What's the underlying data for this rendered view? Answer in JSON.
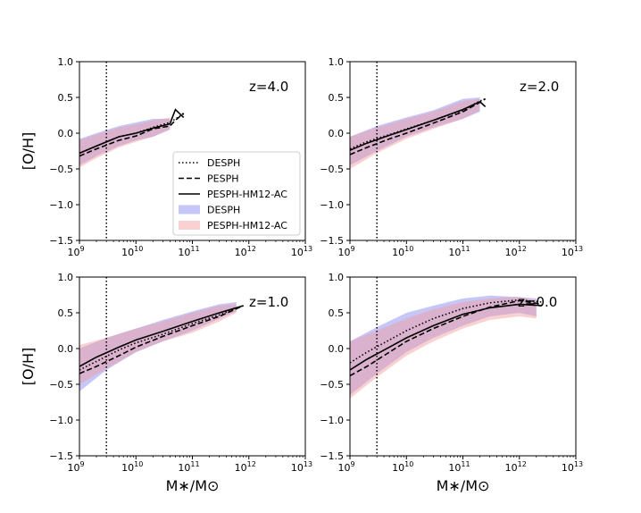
{
  "chart_data": [
    {
      "type": "line",
      "panel_label": "z=4.0",
      "xlabel": "",
      "ylabel": "[O/H]",
      "xscale": "log",
      "xlim": [
        1000000000.0,
        10000000000000.0
      ],
      "ylim": [
        -1.5,
        1.0
      ],
      "vline_x": 3000000000.0,
      "series": [
        {
          "name": "DESPH",
          "style": "dotted",
          "x": [
            1000000000.0,
            2000000000.0,
            5000000000.0,
            10000000000.0,
            20000000000.0,
            40000000000.0,
            50000000000.0,
            70000000000.0
          ],
          "y": [
            -0.28,
            -0.18,
            -0.05,
            0.0,
            0.08,
            0.15,
            0.2,
            0.27
          ]
        },
        {
          "name": "PESPH",
          "style": "dashed",
          "x": [
            1000000000.0,
            2000000000.0,
            5000000000.0,
            10000000000.0,
            20000000000.0,
            40000000000.0,
            50000000000.0,
            70000000000.0
          ],
          "y": [
            -0.32,
            -0.22,
            -0.1,
            -0.04,
            0.06,
            0.1,
            0.18,
            0.28
          ]
        },
        {
          "name": "PESPH-HM12-AC",
          "style": "solid",
          "x": [
            1000000000.0,
            2000000000.0,
            5000000000.0,
            10000000000.0,
            20000000000.0,
            40000000000.0,
            50000000000.0,
            70000000000.0
          ],
          "y": [
            -0.28,
            -0.18,
            -0.05,
            0.0,
            0.07,
            0.13,
            0.33,
            0.22
          ]
        },
        {
          "name": "DESPH",
          "style": "band",
          "color": "#8080ee",
          "x": [
            1000000000.0,
            2000000000.0,
            5000000000.0,
            10000000000.0,
            20000000000.0,
            40000000000.0
          ],
          "y_low": [
            -0.45,
            -0.32,
            -0.18,
            -0.1,
            -0.05,
            0.05
          ],
          "y_high": [
            -0.08,
            0.0,
            0.1,
            0.15,
            0.2,
            0.2
          ]
        },
        {
          "name": "PESPH-HM12-AC",
          "style": "band",
          "color": "#f19898",
          "x": [
            1000000000.0,
            2000000000.0,
            5000000000.0,
            10000000000.0,
            20000000000.0,
            40000000000.0
          ],
          "y_low": [
            -0.48,
            -0.35,
            -0.2,
            -0.12,
            -0.05,
            0.05
          ],
          "y_high": [
            -0.1,
            -0.02,
            0.08,
            0.12,
            0.18,
            0.22
          ]
        }
      ]
    },
    {
      "type": "line",
      "panel_label": "z=2.0",
      "xlabel": "",
      "ylabel": "",
      "xscale": "log",
      "xlim": [
        1000000000.0,
        10000000000000.0
      ],
      "ylim": [
        -1.5,
        1.0
      ],
      "vline_x": 3000000000.0,
      "series": [
        {
          "name": "DESPH",
          "style": "dotted",
          "x": [
            1000000000.0,
            2000000000.0,
            5000000000.0,
            10000000000.0,
            30000000000.0,
            100000000000.0,
            200000000000.0,
            250000000000.0
          ],
          "y": [
            -0.22,
            -0.12,
            -0.02,
            0.06,
            0.18,
            0.32,
            0.45,
            0.48
          ]
        },
        {
          "name": "PESPH",
          "style": "dashed",
          "x": [
            1000000000.0,
            2000000000.0,
            5000000000.0,
            10000000000.0,
            30000000000.0,
            100000000000.0,
            200000000000.0,
            250000000000.0
          ],
          "y": [
            -0.3,
            -0.2,
            -0.08,
            0.0,
            0.14,
            0.3,
            0.43,
            0.48
          ]
        },
        {
          "name": "PESPH-HM12-AC",
          "style": "solid",
          "x": [
            1000000000.0,
            2000000000.0,
            5000000000.0,
            10000000000.0,
            30000000000.0,
            100000000000.0,
            200000000000.0,
            250000000000.0
          ],
          "y": [
            -0.24,
            -0.14,
            -0.03,
            0.05,
            0.18,
            0.33,
            0.44,
            0.37
          ]
        },
        {
          "name": "DESPH",
          "style": "band",
          "color": "#8080ee",
          "x": [
            1000000000.0,
            3000000000.0,
            10000000000.0,
            30000000000.0,
            100000000000.0,
            200000000000.0
          ],
          "y_low": [
            -0.45,
            -0.25,
            -0.05,
            0.08,
            0.2,
            0.3
          ],
          "y_high": [
            -0.05,
            0.1,
            0.22,
            0.32,
            0.48,
            0.5
          ]
        },
        {
          "name": "PESPH-HM12-AC",
          "style": "band",
          "color": "#f19898",
          "x": [
            1000000000.0,
            3000000000.0,
            10000000000.0,
            30000000000.0,
            100000000000.0,
            200000000000.0
          ],
          "y_low": [
            -0.5,
            -0.28,
            -0.08,
            0.06,
            0.2,
            0.32
          ],
          "y_high": [
            -0.05,
            0.08,
            0.2,
            0.3,
            0.45,
            0.48
          ]
        }
      ]
    },
    {
      "type": "line",
      "panel_label": "z=1.0",
      "xlabel": "M∗/M⊙",
      "ylabel": "[O/H]",
      "xscale": "log",
      "xlim": [
        1000000000.0,
        10000000000000.0
      ],
      "ylim": [
        -1.5,
        1.0
      ],
      "vline_x": 3000000000.0,
      "series": [
        {
          "name": "DESPH",
          "style": "dotted",
          "x": [
            1000000000.0,
            2000000000.0,
            5000000000.0,
            10000000000.0,
            30000000000.0,
            100000000000.0,
            300000000000.0,
            800000000000.0
          ],
          "y": [
            -0.3,
            -0.18,
            -0.02,
            0.08,
            0.2,
            0.35,
            0.47,
            0.6
          ]
        },
        {
          "name": "PESPH",
          "style": "dashed",
          "x": [
            1000000000.0,
            2000000000.0,
            5000000000.0,
            10000000000.0,
            30000000000.0,
            100000000000.0,
            300000000000.0,
            800000000000.0
          ],
          "y": [
            -0.35,
            -0.25,
            -0.1,
            0.02,
            0.17,
            0.32,
            0.45,
            0.6
          ]
        },
        {
          "name": "PESPH-HM12-AC",
          "style": "solid",
          "x": [
            1000000000.0,
            2000000000.0,
            5000000000.0,
            10000000000.0,
            30000000000.0,
            100000000000.0,
            300000000000.0,
            800000000000.0
          ],
          "y": [
            -0.25,
            -0.12,
            0.02,
            0.12,
            0.24,
            0.38,
            0.5,
            0.6
          ]
        },
        {
          "name": "DESPH",
          "style": "band",
          "color": "#8080ee",
          "x": [
            1000000000.0,
            3000000000.0,
            10000000000.0,
            30000000000.0,
            100000000000.0,
            300000000000.0,
            600000000000.0
          ],
          "y_low": [
            -0.6,
            -0.3,
            -0.05,
            0.1,
            0.25,
            0.42,
            0.52
          ],
          "y_high": [
            0.0,
            0.15,
            0.28,
            0.4,
            0.52,
            0.62,
            0.65
          ]
        },
        {
          "name": "PESPH-HM12-AC",
          "style": "band",
          "color": "#f19898",
          "x": [
            1000000000.0,
            3000000000.0,
            10000000000.0,
            30000000000.0,
            100000000000.0,
            300000000000.0,
            600000000000.0
          ],
          "y_low": [
            -0.5,
            -0.28,
            -0.05,
            0.1,
            0.22,
            0.38,
            0.5
          ],
          "y_high": [
            0.05,
            0.15,
            0.28,
            0.38,
            0.5,
            0.6,
            0.62
          ]
        }
      ]
    },
    {
      "type": "line",
      "panel_label": "z=0.0",
      "xlabel": "M∗/M⊙",
      "ylabel": "",
      "xscale": "log",
      "xlim": [
        1000000000.0,
        10000000000000.0
      ],
      "ylim": [
        -1.5,
        1.0
      ],
      "vline_x": 3000000000.0,
      "series": [
        {
          "name": "DESPH",
          "style": "dotted",
          "x": [
            1000000000.0,
            2000000000.0,
            5000000000.0,
            10000000000.0,
            30000000000.0,
            100000000000.0,
            300000000000.0,
            1000000000000.0,
            2500000000000.0
          ],
          "y": [
            -0.2,
            -0.05,
            0.12,
            0.25,
            0.42,
            0.56,
            0.64,
            0.68,
            0.65
          ]
        },
        {
          "name": "PESPH",
          "style": "dashed",
          "x": [
            1000000000.0,
            2000000000.0,
            5000000000.0,
            10000000000.0,
            30000000000.0,
            100000000000.0,
            300000000000.0,
            1000000000000.0,
            2500000000000.0
          ],
          "y": [
            -0.38,
            -0.25,
            -0.05,
            0.1,
            0.28,
            0.45,
            0.58,
            0.67,
            0.62
          ]
        },
        {
          "name": "PESPH-HM12-AC",
          "style": "solid",
          "x": [
            1000000000.0,
            2000000000.0,
            5000000000.0,
            10000000000.0,
            30000000000.0,
            100000000000.0,
            300000000000.0,
            1000000000000.0,
            2500000000000.0
          ],
          "y": [
            -0.3,
            -0.15,
            0.02,
            0.15,
            0.32,
            0.48,
            0.57,
            0.62,
            0.6
          ]
        },
        {
          "name": "DESPH",
          "style": "band",
          "color": "#8080ee",
          "x": [
            1000000000.0,
            3000000000.0,
            10000000000.0,
            30000000000.0,
            100000000000.0,
            300000000000.0,
            1000000000000.0,
            2000000000000.0
          ],
          "y_low": [
            -0.65,
            -0.35,
            -0.05,
            0.15,
            0.32,
            0.45,
            0.5,
            0.45
          ],
          "y_high": [
            0.1,
            0.3,
            0.5,
            0.6,
            0.7,
            0.74,
            0.72,
            0.7
          ]
        },
        {
          "name": "PESPH-HM12-AC",
          "style": "band",
          "color": "#f19898",
          "x": [
            1000000000.0,
            3000000000.0,
            10000000000.0,
            30000000000.0,
            100000000000.0,
            300000000000.0,
            1000000000000.0,
            2000000000000.0
          ],
          "y_low": [
            -0.7,
            -0.4,
            -0.1,
            0.1,
            0.28,
            0.4,
            0.45,
            0.42
          ],
          "y_high": [
            0.1,
            0.25,
            0.42,
            0.55,
            0.65,
            0.7,
            0.72,
            0.68
          ]
        }
      ]
    }
  ],
  "legend": {
    "entries": [
      {
        "label": "DESPH",
        "style": "dotted"
      },
      {
        "label": "PESPH",
        "style": "dashed"
      },
      {
        "label": "PESPH-HM12-AC",
        "style": "solid"
      },
      {
        "label": "DESPH",
        "style": "band",
        "color": "#8080ee"
      },
      {
        "label": "PESPH-HM12-AC",
        "style": "band",
        "color": "#f19898"
      }
    ],
    "placement": "center-right of first panel"
  },
  "y_ticks": [
    "1.0",
    "0.5",
    "0.0",
    "−0.5",
    "−1.0",
    "−1.5"
  ],
  "y_tick_values": [
    1.0,
    0.5,
    0.0,
    -0.5,
    -1.0,
    -1.5
  ],
  "x_tick_exponents": [
    "9",
    "10",
    "11",
    "12",
    "13"
  ],
  "x_tick_base": "10",
  "colors": {
    "desph_band": "#8080ee",
    "pesph_band": "#f19898",
    "line": "#000000"
  }
}
